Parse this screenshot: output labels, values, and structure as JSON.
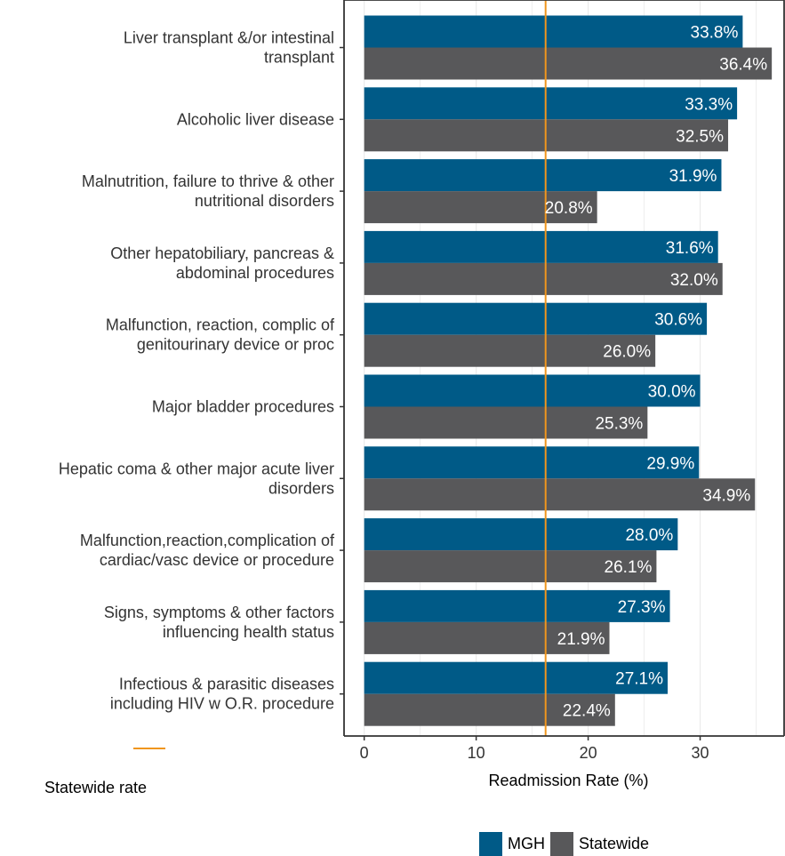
{
  "chart_data": {
    "type": "bar",
    "orientation": "horizontal",
    "categories": [
      [
        "Liver transplant &/or intestinal",
        "transplant"
      ],
      [
        "Alcoholic liver disease"
      ],
      [
        "Malnutrition, failure to thrive & other",
        "nutritional disorders"
      ],
      [
        "Other hepatobiliary, pancreas &",
        "abdominal procedures"
      ],
      [
        "Malfunction, reaction, complic of",
        "genitourinary device or proc"
      ],
      [
        "Major bladder procedures"
      ],
      [
        "Hepatic coma & other major acute liver",
        "disorders"
      ],
      [
        "Malfunction,reaction,complication of",
        "cardiac/vasc device or procedure"
      ],
      [
        "Signs, symptoms & other factors",
        "influencing health status"
      ],
      [
        "Infectious & parasitic diseases",
        "including HIV w O.R. procedure"
      ]
    ],
    "series": [
      {
        "name": "MGH",
        "color": "#005a87",
        "values": [
          33.8,
          33.3,
          31.9,
          31.6,
          30.6,
          30.0,
          29.9,
          28.0,
          27.3,
          27.1
        ],
        "labels": [
          "33.8%",
          "33.3%",
          "31.9%",
          "31.6%",
          "30.6%",
          "30.0%",
          "29.9%",
          "28.0%",
          "27.3%",
          "27.1%"
        ]
      },
      {
        "name": "Statewide",
        "color": "#58585a",
        "values": [
          36.4,
          32.5,
          20.8,
          32.0,
          26.0,
          25.3,
          34.9,
          26.1,
          21.9,
          22.4
        ],
        "labels": [
          "36.4%",
          "32.5%",
          "20.8%",
          "32.0%",
          "26.0%",
          "25.3%",
          "34.9%",
          "26.1%",
          "21.9%",
          "22.4%"
        ]
      }
    ],
    "reference_line": {
      "value": 16.2,
      "label": "Statewide rate",
      "color": "#f0961e"
    },
    "xlabel": "Readmission Rate (%)",
    "xlim": [
      -1.8,
      37.5
    ],
    "xticks": [
      0,
      10,
      20,
      30
    ],
    "xtick_labels": [
      "0",
      "10",
      "20",
      "30"
    ],
    "grid": "vertical",
    "legend_position": "bottom"
  }
}
